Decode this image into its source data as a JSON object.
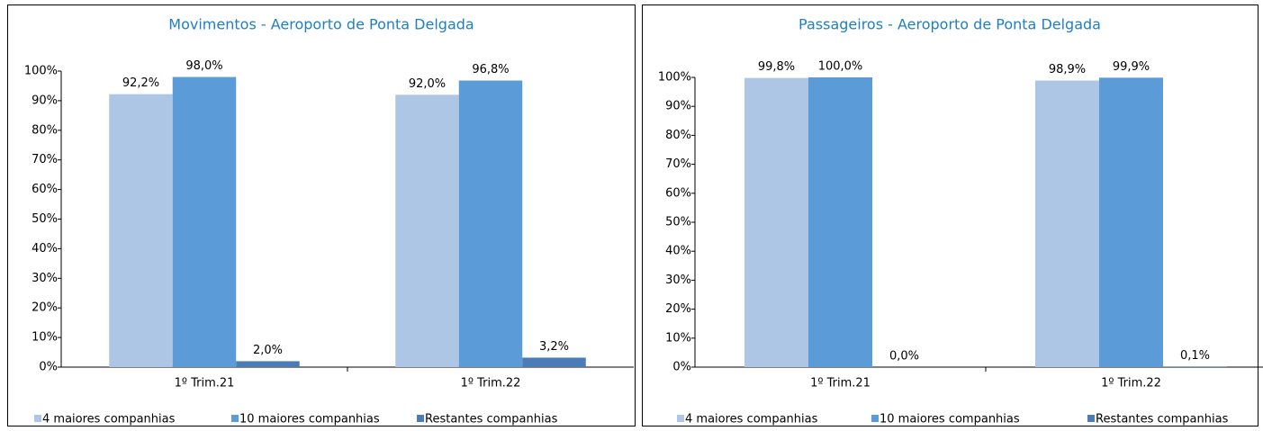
{
  "chart_data": [
    {
      "type": "bar",
      "title": "Movimentos - Aeroporto de Ponta Delgada",
      "categories": [
        "1º Trim.21",
        "1º Trim.22"
      ],
      "series": [
        {
          "name": "4 maiores companhias",
          "color": "#adc6e6",
          "values": [
            92.2,
            92.0
          ],
          "value_labels": [
            "92,2%",
            "92,0%"
          ]
        },
        {
          "name": "10 maiores companhias",
          "color": "#5b9bd7",
          "values": [
            98.0,
            96.8
          ],
          "value_labels": [
            "98,0%",
            "96,8%"
          ]
        },
        {
          "name": "Restantes companhias",
          "color": "#4a7db8",
          "values": [
            2.0,
            3.2
          ],
          "value_labels": [
            "2,0%",
            "3,2%"
          ]
        }
      ],
      "ylim": [
        0,
        100
      ],
      "yticks": [
        {
          "value": 0,
          "label": "0%"
        },
        {
          "value": 10,
          "label": "10%"
        },
        {
          "value": 20,
          "label": "20%"
        },
        {
          "value": 30,
          "label": "30%"
        },
        {
          "value": 40,
          "label": "40%"
        },
        {
          "value": 50,
          "label": "50%"
        },
        {
          "value": 60,
          "label": "60%"
        },
        {
          "value": 70,
          "label": "70%"
        },
        {
          "value": 80,
          "label": "80%"
        },
        {
          "value": 90,
          "label": "90%"
        },
        {
          "value": 100,
          "label": "100%"
        }
      ],
      "legend": "bottom"
    },
    {
      "type": "bar",
      "title": "Passageiros - Aeroporto de Ponta Delgada",
      "categories": [
        "1º Trim.21",
        "1º Trim.22"
      ],
      "series": [
        {
          "name": "4 maiores companhias",
          "color": "#adc6e6",
          "values": [
            99.8,
            98.9
          ],
          "value_labels": [
            "99,8%",
            "98,9%"
          ]
        },
        {
          "name": "10 maiores companhias",
          "color": "#5b9bd7",
          "values": [
            100.0,
            99.9
          ],
          "value_labels": [
            "100,0%",
            "99,9%"
          ]
        },
        {
          "name": "Restantes companhias",
          "color": "#4a7db8",
          "values": [
            0.0,
            0.1
          ],
          "value_labels": [
            "0,0%",
            "0,1%"
          ]
        }
      ],
      "ylim": [
        0,
        100
      ],
      "yticks": [
        {
          "value": 0,
          "label": "0%"
        },
        {
          "value": 10,
          "label": "10%"
        },
        {
          "value": 20,
          "label": "20%"
        },
        {
          "value": 30,
          "label": "30%"
        },
        {
          "value": 40,
          "label": "40%"
        },
        {
          "value": 50,
          "label": "50%"
        },
        {
          "value": 60,
          "label": "60%"
        },
        {
          "value": 70,
          "label": "70%"
        },
        {
          "value": 80,
          "label": "80%"
        },
        {
          "value": 90,
          "label": "90%"
        },
        {
          "value": 100,
          "label": "100%"
        }
      ],
      "legend": "bottom"
    }
  ]
}
